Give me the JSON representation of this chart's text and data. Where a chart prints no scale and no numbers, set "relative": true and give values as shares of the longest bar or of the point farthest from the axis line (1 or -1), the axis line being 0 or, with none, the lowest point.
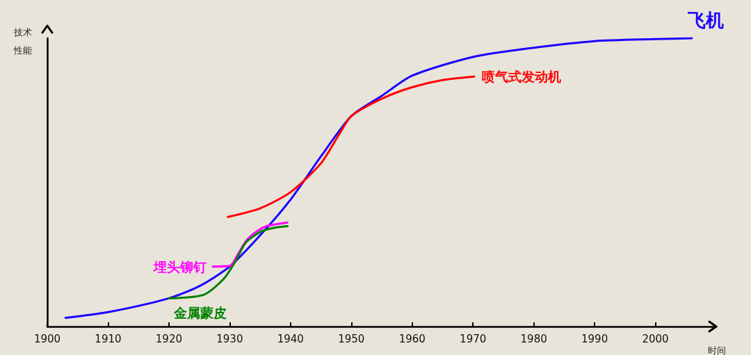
{
  "chart_data": {
    "type": "line",
    "relative": true,
    "xlabel": "时间",
    "ylabel": "技术性能",
    "xlim": [
      1900,
      2010
    ],
    "xticks": [
      1900,
      1910,
      1920,
      1930,
      1940,
      1950,
      1960,
      1970,
      1980,
      1990,
      2000
    ],
    "grid": false,
    "legend": false,
    "marker": "none",
    "line_style": "solid",
    "series": [
      {
        "name": "飞机",
        "color": "#1a00ff",
        "x": [
          1903,
          1910,
          1920,
          1925,
          1930,
          1935,
          1940,
          1945,
          1950,
          1955,
          1960,
          1970,
          1980,
          1990,
          2000,
          2006
        ],
        "values": [
          0.03,
          0.05,
          0.098,
          0.14,
          0.208,
          0.316,
          0.44,
          0.59,
          0.73,
          0.8,
          0.87,
          0.935,
          0.967,
          0.99,
          0.997,
          1
        ]
      },
      {
        "name": "喷气式发动机",
        "color": "#ff0000",
        "x": [
          1929.7,
          1935,
          1940,
          1945,
          1948,
          1950,
          1955,
          1960,
          1965,
          1970.2
        ],
        "values": [
          0.38,
          0.41,
          0.466,
          0.566,
          0.667,
          0.73,
          0.79,
          0.83,
          0.855,
          0.867
        ]
      },
      {
        "name": "埋头铆钉",
        "color": "#ff00ff",
        "x": [
          1927.2,
          1930,
          1931.4,
          1932.8,
          1934.3,
          1936,
          1938,
          1939.5
        ],
        "values": [
          0.208,
          0.21,
          0.253,
          0.3,
          0.328,
          0.348,
          0.356,
          0.361
        ]
      },
      {
        "name": "金属蒙皮",
        "color": "#008000",
        "x": [
          1920,
          1925.7,
          1929,
          1931,
          1932.6,
          1935,
          1937,
          1939.5
        ],
        "values": [
          0.098,
          0.11,
          0.165,
          0.228,
          0.29,
          0.328,
          0.341,
          0.348
        ]
      }
    ]
  }
}
